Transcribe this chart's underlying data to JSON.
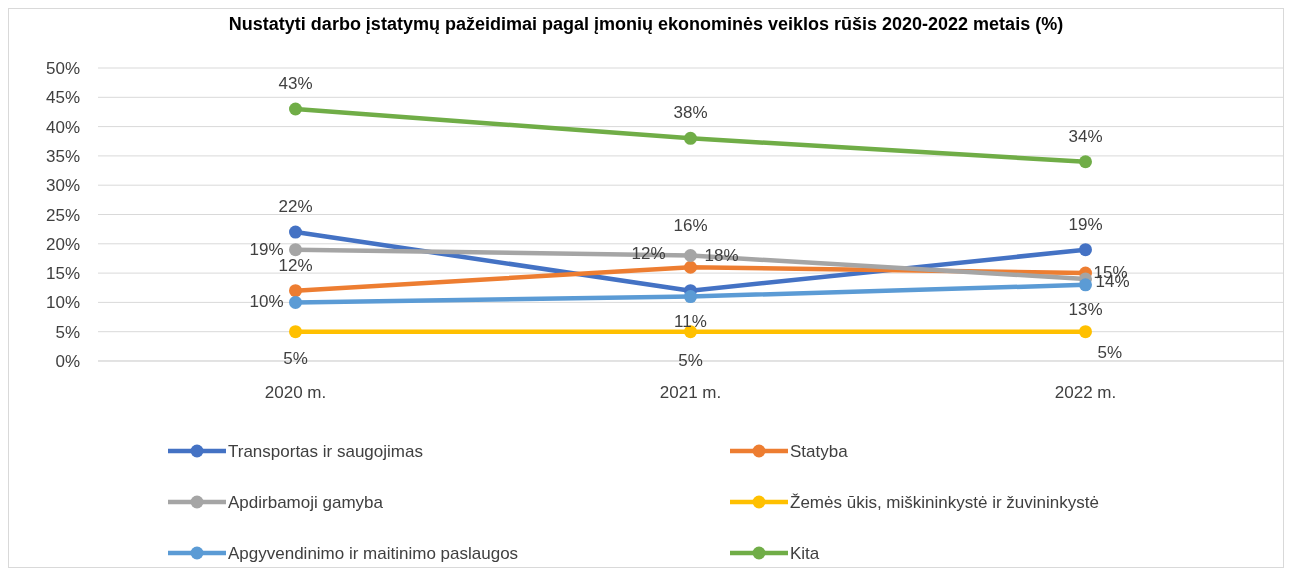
{
  "chart_data": {
    "type": "line",
    "title": "Nustatyti darbo įstatymų pažeidimai pagal įmonių ekonominės veiklos rūšis 2020-2022 metais (%)",
    "categories": [
      "2020 m.",
      "2021 m.",
      "2022 m."
    ],
    "series": [
      {
        "name": "Transportas ir saugojimas",
        "color": "#4472c4",
        "values": [
          22,
          12,
          19
        ],
        "value_labels": [
          "22%",
          "12%",
          "19%"
        ]
      },
      {
        "name": "Statyba",
        "color": "#ed7d31",
        "values": [
          12,
          16,
          15
        ],
        "value_labels": [
          "12%",
          "16%",
          "15%"
        ]
      },
      {
        "name": "Apdirbamoji gamyba",
        "color": "#a5a5a5",
        "values": [
          19,
          18,
          14
        ],
        "value_labels": [
          "19%",
          "18%",
          "14%"
        ]
      },
      {
        "name": "Žemės ūkis, miškininkystė ir žuvininkystė",
        "color": "#ffc000",
        "values": [
          5,
          5,
          5
        ],
        "value_labels": [
          "5%",
          "5%",
          "5%"
        ]
      },
      {
        "name": "Apgyvendinimo ir maitinimo paslaugos",
        "color": "#5b9bd5",
        "values": [
          10,
          11,
          13
        ],
        "value_labels": [
          "10%",
          "11%",
          "13%"
        ]
      },
      {
        "name": "Kita",
        "color": "#70ad47",
        "values": [
          43,
          38,
          34
        ],
        "value_labels": [
          "43%",
          "38%",
          "34%"
        ]
      }
    ],
    "ylim": [
      0,
      50
    ],
    "yticks": [
      {
        "value": 0,
        "label": "0%"
      },
      {
        "value": 5,
        "label": "5%"
      },
      {
        "value": 10,
        "label": "10%"
      },
      {
        "value": 15,
        "label": "15%"
      },
      {
        "value": 20,
        "label": "20%"
      },
      {
        "value": 25,
        "label": "25%"
      },
      {
        "value": 30,
        "label": "30%"
      },
      {
        "value": 35,
        "label": "35%"
      },
      {
        "value": 40,
        "label": "40%"
      },
      {
        "value": 45,
        "label": "45%"
      },
      {
        "value": 50,
        "label": "50%"
      }
    ],
    "grid": "y",
    "legend": "bottom",
    "marker": "circle",
    "line_style": "solid"
  }
}
